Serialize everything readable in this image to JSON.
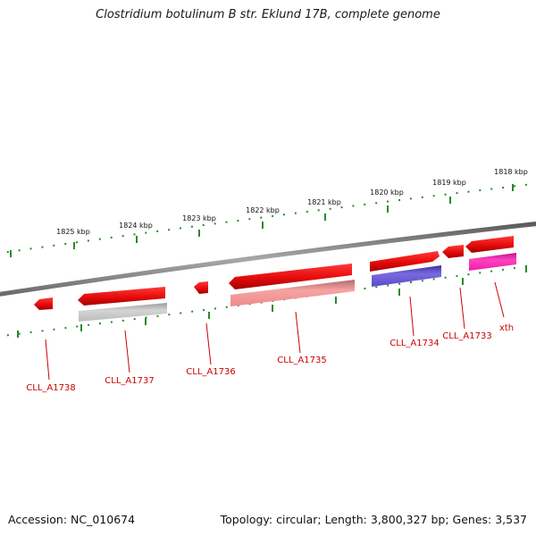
{
  "title": "Clostridium botulinum B str. Eklund 17B, complete genome",
  "footer": {
    "accession": "Accession: NC_010674",
    "summary": "Topology: circular; Length: 3,800,327 bp; Genes: 3,537"
  },
  "colors": {
    "backbone": "#8a8a8a",
    "tick": "#2a8a2a",
    "gene_label": "#cc0000",
    "red_gene": "#ee1111",
    "grey_feature": "#bdbdbd",
    "pink_feature": "#ee8888",
    "purple_feature": "#6655cc",
    "magenta_feature": "#ee22aa"
  },
  "scale": {
    "upper_ruler_labels": [
      "1825 kbp",
      "1824 kbp",
      "1823 kbp",
      "1822 kbp",
      "1821 kbp",
      "1820 kbp",
      "1819 kbp",
      "1818 kbp"
    ]
  },
  "genes": [
    {
      "name": "CLL_A1738",
      "strand": "forward_track",
      "color_key": "red_gene"
    },
    {
      "name": "CLL_A1737",
      "strand": "forward_track",
      "color_key": "red_gene",
      "companion": "grey_feature"
    },
    {
      "name": "CLL_A1736",
      "strand": "forward_track",
      "color_key": "red_gene"
    },
    {
      "name": "CLL_A1735",
      "strand": "forward_track",
      "color_key": "red_gene",
      "companion": "pink_feature"
    },
    {
      "name": "CLL_A1734",
      "strand": "forward_track",
      "color_key": "red_gene",
      "companion": "purple_feature"
    },
    {
      "name": "CLL_A1733",
      "strand": "forward_track",
      "color_key": "red_gene"
    },
    {
      "name": "xth",
      "strand": "forward_track",
      "color_key": "red_gene",
      "companion": "magenta_feature"
    }
  ]
}
